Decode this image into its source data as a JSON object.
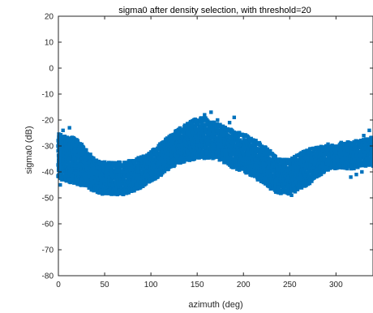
{
  "chart_data": {
    "type": "scatter",
    "title": "sigma0 after density selection, with threshold=20",
    "xlabel": "azimuth (deg)",
    "ylabel": "sigma0 (dB)",
    "xlim": [
      0,
      340
    ],
    "ylim": [
      -80,
      20
    ],
    "xticks": [
      0,
      50,
      100,
      150,
      200,
      250,
      300
    ],
    "yticks": [
      -80,
      -70,
      -60,
      -50,
      -40,
      -30,
      -20,
      -10,
      0,
      10,
      20
    ],
    "grid": false,
    "marker_color": "#0072BD",
    "bands": [
      {
        "name": "main",
        "x": [
          0,
          10,
          20,
          30,
          40,
          50,
          60,
          70,
          80,
          90,
          100,
          110,
          120,
          130,
          140,
          150,
          160,
          170,
          180,
          190,
          200,
          210,
          220,
          230,
          240,
          250,
          260,
          270,
          280,
          290,
          300,
          310,
          320,
          330,
          340
        ],
        "upper": [
          -27,
          -28,
          -29,
          -33,
          -37,
          -38,
          -38,
          -38,
          -37,
          -36,
          -34,
          -31,
          -28,
          -25,
          -23,
          -21,
          -21,
          -23,
          -24,
          -26,
          -27,
          -29,
          -31,
          -34,
          -37,
          -37,
          -35,
          -33,
          -32,
          -31,
          -31,
          -30,
          -30,
          -29,
          -28
        ],
        "lower": [
          -41,
          -42,
          -43,
          -44,
          -46,
          -47,
          -47,
          -47,
          -46,
          -44,
          -42,
          -40,
          -37,
          -35,
          -34,
          -33,
          -33,
          -33,
          -35,
          -37,
          -38,
          -40,
          -42,
          -45,
          -47,
          -47,
          -45,
          -43,
          -40,
          -38,
          -37,
          -37,
          -37,
          -36,
          -36
        ]
      }
    ],
    "outliers": [
      {
        "x": 5,
        "y": -24
      },
      {
        "x": 12,
        "y": -23
      },
      {
        "x": 2,
        "y": -45
      },
      {
        "x": 70,
        "y": -48
      },
      {
        "x": 158,
        "y": -18
      },
      {
        "x": 165,
        "y": -17
      },
      {
        "x": 172,
        "y": -20
      },
      {
        "x": 185,
        "y": -21
      },
      {
        "x": 190,
        "y": -19
      },
      {
        "x": 238,
        "y": -48
      },
      {
        "x": 252,
        "y": -49
      },
      {
        "x": 322,
        "y": -41
      },
      {
        "x": 328,
        "y": -40
      },
      {
        "x": 316,
        "y": -42
      },
      {
        "x": 336,
        "y": -24
      },
      {
        "x": 330,
        "y": -26
      }
    ]
  }
}
